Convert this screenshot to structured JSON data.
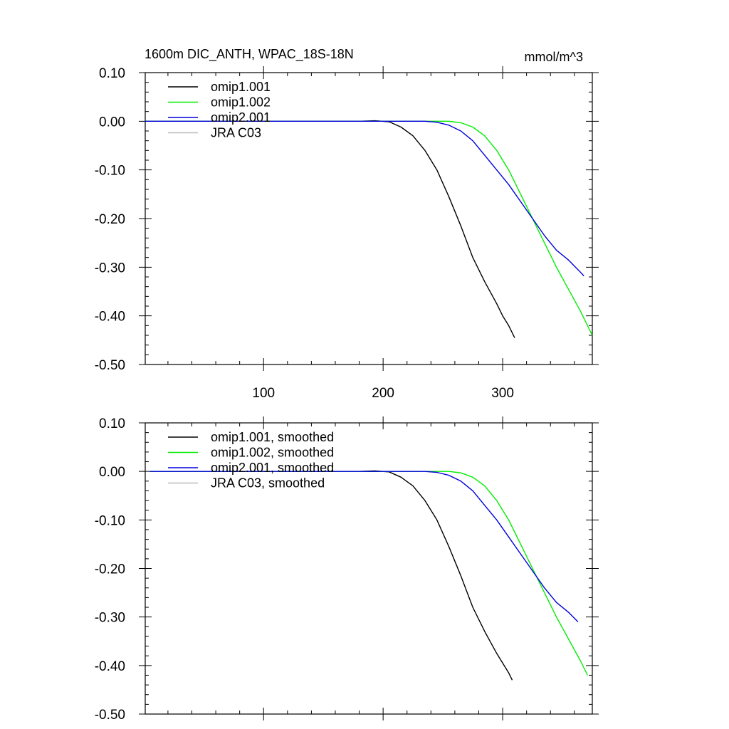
{
  "figure": {
    "title": "1600m DIC_ANTH, WPAC_18S-18N",
    "units": "mmol/m^3"
  },
  "chart_data": [
    {
      "type": "line",
      "title": "1600m DIC_ANTH, WPAC_18S-18N",
      "units": "mmol/m^3",
      "xlim": [
        1,
        375
      ],
      "ylim": [
        -0.5,
        0.1
      ],
      "xticks": [
        100,
        200,
        300
      ],
      "xticklabels": [
        "100",
        "200",
        "300"
      ],
      "yticks": [
        0.1,
        0.0,
        -0.1,
        -0.2,
        -0.3,
        -0.4,
        -0.5
      ],
      "yticklabels": [
        "0.10",
        "0.00",
        "-0.10",
        "-0.20",
        "-0.30",
        "-0.40",
        "-0.50"
      ],
      "legend_position": "top-left",
      "series": [
        {
          "name": "omip1.001",
          "color": "#000000",
          "x": [
            1,
            180,
            193,
            205,
            215,
            225,
            235,
            245,
            255,
            265,
            275,
            285,
            295,
            300,
            305,
            310
          ],
          "y": [
            0.0,
            0.0,
            0.001,
            -0.001,
            -0.012,
            -0.03,
            -0.06,
            -0.1,
            -0.155,
            -0.215,
            -0.28,
            -0.33,
            -0.375,
            -0.4,
            -0.42,
            -0.445
          ]
        },
        {
          "name": "omip1.002",
          "color": "#00ee00",
          "x": [
            1,
            240,
            255,
            265,
            275,
            285,
            295,
            305,
            315,
            325,
            335,
            345,
            355,
            365,
            375
          ],
          "y": [
            0.0,
            0.0,
            0.0,
            -0.003,
            -0.012,
            -0.03,
            -0.06,
            -0.1,
            -0.15,
            -0.2,
            -0.25,
            -0.3,
            -0.345,
            -0.39,
            -0.44
          ]
        },
        {
          "name": "omip2.001",
          "color": "#0000dd",
          "x": [
            1,
            200,
            215,
            235,
            245,
            255,
            265,
            275,
            285,
            295,
            305,
            315,
            325,
            335,
            345,
            355,
            365,
            368
          ],
          "y": [
            0.0,
            0.0,
            0.0,
            0.0,
            -0.002,
            -0.008,
            -0.02,
            -0.04,
            -0.07,
            -0.1,
            -0.13,
            -0.165,
            -0.2,
            -0.235,
            -0.265,
            -0.285,
            -0.31,
            -0.318
          ]
        },
        {
          "name": "JRA C03",
          "color": "#bbbbbb",
          "x": [],
          "y": []
        }
      ]
    },
    {
      "type": "line",
      "title": "",
      "xlim": [
        1,
        375
      ],
      "ylim": [
        -0.5,
        0.1
      ],
      "xticks": [
        100,
        200,
        300
      ],
      "xticklabels": [],
      "yticks": [
        0.1,
        0.0,
        -0.1,
        -0.2,
        -0.3,
        -0.4,
        -0.5
      ],
      "yticklabels": [
        "0.10",
        "0.00",
        "-0.10",
        "-0.20",
        "-0.30",
        "-0.40",
        "-0.50"
      ],
      "legend_position": "top-left",
      "series": [
        {
          "name": "omip1.001, smoothed",
          "color": "#000000",
          "x": [
            5,
            180,
            193,
            205,
            215,
            225,
            235,
            245,
            255,
            265,
            275,
            285,
            295,
            305,
            308
          ],
          "y": [
            0.0,
            0.0,
            0.001,
            -0.001,
            -0.012,
            -0.03,
            -0.06,
            -0.1,
            -0.155,
            -0.215,
            -0.28,
            -0.33,
            -0.375,
            -0.415,
            -0.43
          ]
        },
        {
          "name": "omip1.002, smoothed",
          "color": "#00ee00",
          "x": [
            5,
            240,
            255,
            265,
            275,
            285,
            295,
            305,
            315,
            325,
            335,
            345,
            355,
            365,
            371
          ],
          "y": [
            0.0,
            0.0,
            0.0,
            -0.003,
            -0.012,
            -0.03,
            -0.06,
            -0.1,
            -0.15,
            -0.2,
            -0.25,
            -0.3,
            -0.345,
            -0.39,
            -0.42
          ]
        },
        {
          "name": "omip2.001, smoothed",
          "color": "#0000dd",
          "x": [
            5,
            200,
            215,
            235,
            245,
            255,
            265,
            275,
            285,
            295,
            305,
            315,
            325,
            335,
            345,
            355,
            363
          ],
          "y": [
            0.0,
            0.0,
            0.0,
            0.0,
            -0.002,
            -0.008,
            -0.02,
            -0.04,
            -0.07,
            -0.1,
            -0.135,
            -0.17,
            -0.205,
            -0.24,
            -0.27,
            -0.29,
            -0.31
          ]
        },
        {
          "name": "JRA C03, smoothed",
          "color": "#bbbbbb",
          "x": [],
          "y": []
        }
      ]
    }
  ]
}
